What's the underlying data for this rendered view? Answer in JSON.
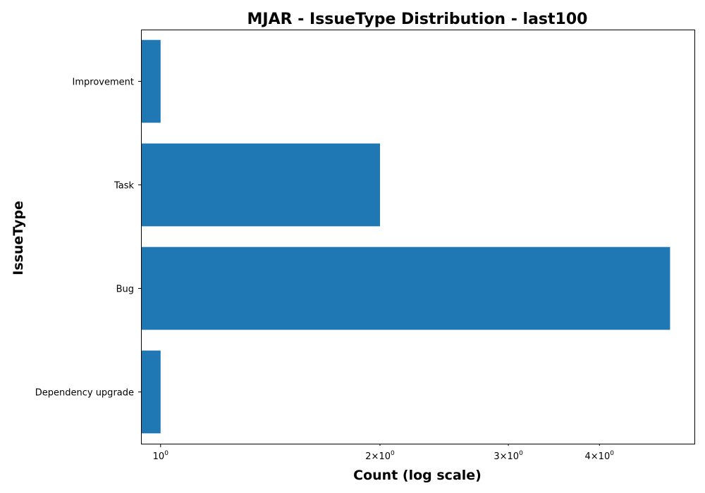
{
  "chart_data": {
    "type": "bar",
    "orientation": "horizontal",
    "title": "MJAR - IssueType Distribution - last100",
    "xlabel": "Count (log scale)",
    "ylabel": "IssueType",
    "x_scale": "log",
    "xlim": [
      0.94,
      5.4
    ],
    "grid": false,
    "legend": "none",
    "bar_color": "#1f77b4",
    "categories": [
      "Dependency upgrade",
      "Bug",
      "Task",
      "Improvement"
    ],
    "values": [
      1,
      5,
      2,
      1
    ],
    "x_ticks": [
      {
        "value": 1,
        "mantissa": "",
        "base": "10",
        "exp": "0"
      },
      {
        "value": 2,
        "mantissa": "2×",
        "base": "10",
        "exp": "0"
      },
      {
        "value": 3,
        "mantissa": "3×",
        "base": "10",
        "exp": "0"
      },
      {
        "value": 4,
        "mantissa": "4×",
        "base": "10",
        "exp": "0"
      }
    ]
  }
}
